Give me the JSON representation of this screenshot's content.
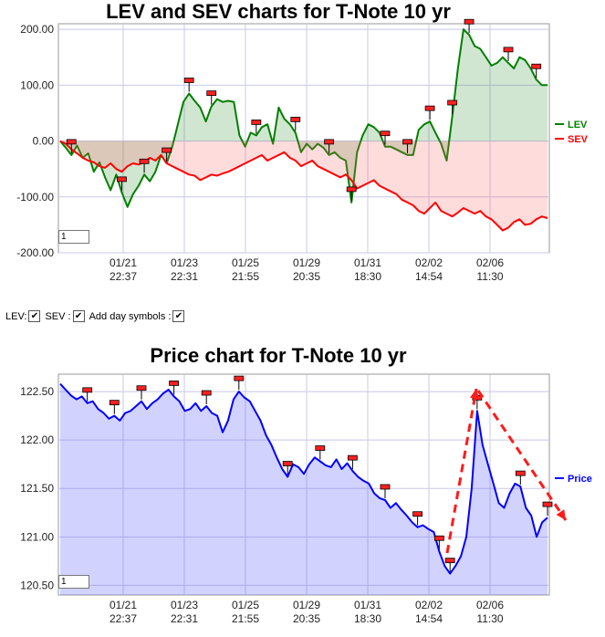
{
  "chart_data": [
    {
      "type": "line",
      "title": "LEV and SEV charts for T-Note 10 yr",
      "x_tick_labels": [
        [
          "01/21",
          "22:37"
        ],
        [
          "01/23",
          "22:31"
        ],
        [
          "01/25",
          "21:55"
        ],
        [
          "01/29",
          "20:35"
        ],
        [
          "01/31",
          "18:30"
        ],
        [
          "02/02",
          "14:54"
        ],
        [
          "02/06",
          "11:30"
        ]
      ],
      "y_ticks": [
        "200.00",
        "100.00",
        "0.00",
        "-100.00",
        "-200.00"
      ],
      "ylim": [
        -200,
        210
      ],
      "series": [
        {
          "name": "LEV",
          "color": "#008000",
          "values": [
            0,
            -12,
            -25,
            -8,
            -30,
            -22,
            -55,
            -38,
            -65,
            -88,
            -60,
            -92,
            -118,
            -95,
            -80,
            -60,
            -72,
            -55,
            -25,
            -40,
            -10,
            30,
            70,
            85,
            72,
            60,
            35,
            62,
            75,
            70,
            72,
            70,
            10,
            -10,
            15,
            10,
            25,
            30,
            -5,
            60,
            40,
            30,
            15,
            -20,
            -5,
            -15,
            -5,
            -12,
            -25,
            -20,
            -30,
            -35,
            -110,
            -20,
            10,
            30,
            25,
            15,
            -10,
            -10,
            -15,
            -20,
            -25,
            -25,
            20,
            30,
            35,
            15,
            -5,
            -35,
            45,
            130,
            200,
            190,
            170,
            165,
            150,
            135,
            140,
            150,
            140,
            130,
            150,
            145,
            130,
            110,
            100,
            100
          ]
        },
        {
          "name": "SEV",
          "color": "#ff0000",
          "values": [
            0,
            -5,
            -15,
            -22,
            -30,
            -35,
            -38,
            -45,
            -48,
            -40,
            -50,
            -55,
            -45,
            -40,
            -42,
            -38,
            -30,
            -35,
            -25,
            -40,
            -45,
            -50,
            -55,
            -60,
            -62,
            -70,
            -65,
            -60,
            -62,
            -58,
            -55,
            -50,
            -45,
            -40,
            -35,
            -30,
            -25,
            -35,
            -30,
            -25,
            -20,
            -30,
            -35,
            -45,
            -40,
            -35,
            -45,
            -50,
            -55,
            -60,
            -65,
            -60,
            -70,
            -85,
            -80,
            -75,
            -70,
            -80,
            -85,
            -90,
            -95,
            -105,
            -110,
            -115,
            -125,
            -130,
            -120,
            -110,
            -125,
            -130,
            -135,
            -128,
            -120,
            -125,
            -130,
            -125,
            -135,
            -140,
            -150,
            -160,
            -155,
            -145,
            -140,
            -150,
            -148,
            -140,
            -135,
            -138
          ]
        }
      ],
      "page_box": "1"
    },
    {
      "type": "area",
      "title": "Price chart for T-Note 10 yr",
      "x_tick_labels": [
        [
          "01/21",
          "22:37"
        ],
        [
          "01/23",
          "22:31"
        ],
        [
          "01/25",
          "21:55"
        ],
        [
          "01/29",
          "20:35"
        ],
        [
          "01/31",
          "18:30"
        ],
        [
          "02/02",
          "14:54"
        ],
        [
          "02/06",
          "11:30"
        ]
      ],
      "y_ticks": [
        "122.50",
        "122.00",
        "121.50",
        "121.00",
        "120.50"
      ],
      "ylim": [
        120.4,
        122.68
      ],
      "series": [
        {
          "name": "Price",
          "color": "#0000ff",
          "values": [
            122.58,
            122.52,
            122.46,
            122.42,
            122.45,
            122.38,
            122.4,
            122.32,
            122.28,
            122.22,
            122.25,
            122.2,
            122.28,
            122.3,
            122.35,
            122.4,
            122.32,
            122.38,
            122.42,
            122.48,
            122.52,
            122.45,
            122.4,
            122.3,
            122.32,
            122.38,
            122.3,
            122.35,
            122.28,
            122.25,
            122.08,
            122.2,
            122.42,
            122.5,
            122.44,
            122.4,
            122.3,
            122.2,
            122.05,
            121.95,
            121.82,
            121.7,
            121.62,
            121.75,
            121.72,
            121.65,
            121.75,
            121.82,
            121.78,
            121.74,
            121.72,
            121.8,
            121.7,
            121.76,
            121.68,
            121.62,
            121.58,
            121.55,
            121.45,
            121.4,
            121.38,
            121.3,
            121.35,
            121.28,
            121.22,
            121.15,
            121.1,
            121.12,
            121.08,
            121.05,
            120.85,
            120.7,
            120.62,
            120.7,
            120.8,
            121.0,
            121.5,
            122.3,
            121.95,
            121.75,
            121.55,
            121.35,
            121.3,
            121.45,
            121.55,
            121.52,
            121.3,
            121.22,
            121.0,
            121.15,
            121.2
          ]
        }
      ],
      "page_box": "1"
    }
  ],
  "legend": {
    "lev": "LEV",
    "sev": "SEV",
    "price": "Price"
  },
  "controls": {
    "lev_label": "LEV:",
    "sev_label": "SEV :",
    "day_label": "Add day symbols :"
  }
}
